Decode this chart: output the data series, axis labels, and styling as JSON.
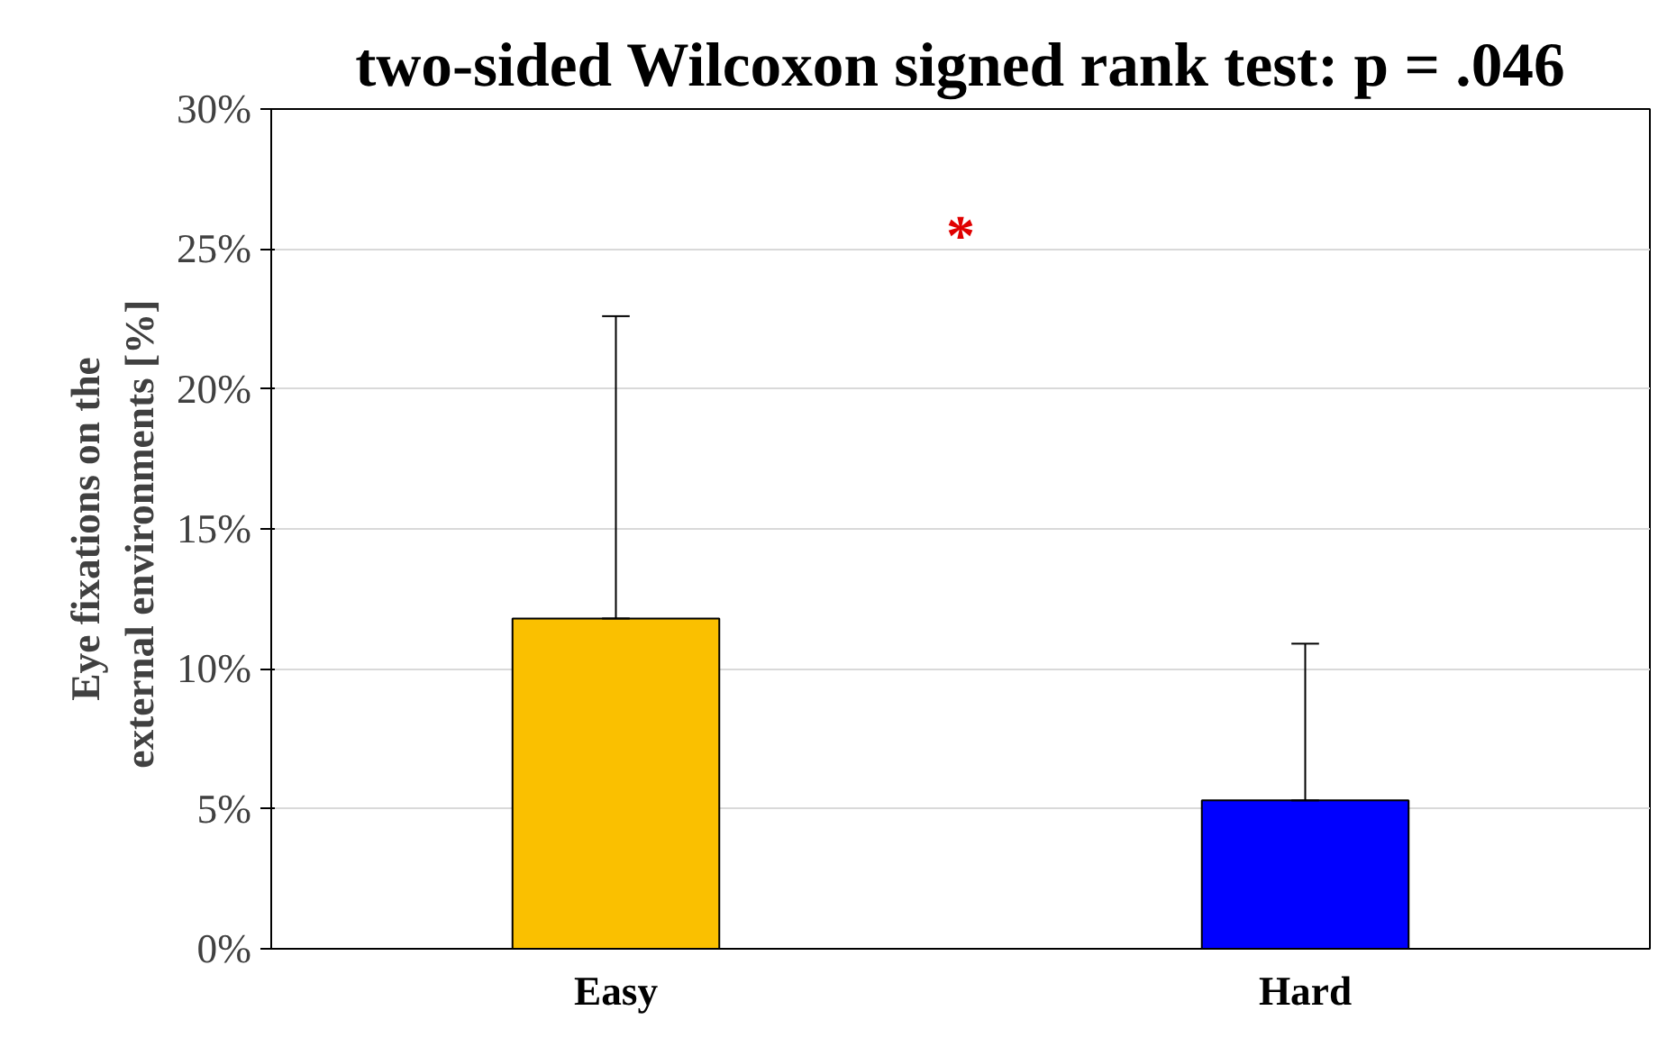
{
  "chart_data": {
    "type": "bar",
    "title": "two-sided Wilcoxon signed rank test: p = .046",
    "ylabel": "Eye fixations on the\nexternal environments  [%]",
    "categories": [
      "Easy",
      "Hard"
    ],
    "values": [
      11.8,
      5.3
    ],
    "colors": [
      "#fac000",
      "#0000ff"
    ],
    "errors": [
      [
        11.8,
        22.6
      ],
      [
        5.3,
        10.9
      ]
    ],
    "ylim": [
      0,
      30
    ],
    "yticks": [
      {
        "value": 0,
        "label": "0%"
      },
      {
        "value": 5,
        "label": "5%"
      },
      {
        "value": 10,
        "label": "10%"
      },
      {
        "value": 15,
        "label": "15%"
      },
      {
        "value": 20,
        "label": "20%"
      },
      {
        "value": 25,
        "label": "25%"
      },
      {
        "value": 30,
        "label": "30%"
      }
    ],
    "grid": "y",
    "annotations": [
      "*"
    ]
  }
}
